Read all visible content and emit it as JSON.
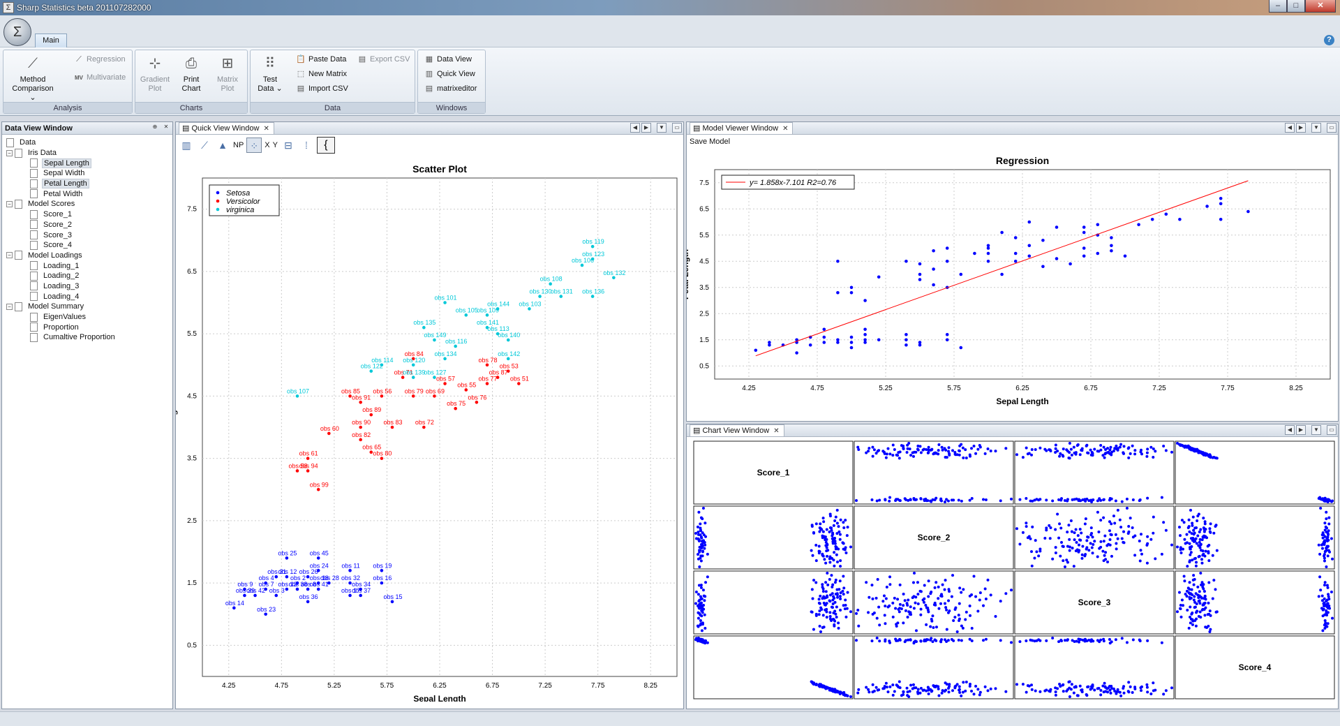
{
  "window": {
    "title": "Sharp Statistics beta 201107282000",
    "controls": [
      "–",
      "□",
      "✕"
    ]
  },
  "ribbon": {
    "tab": "Main",
    "groups": {
      "analysis": {
        "label": "Analysis",
        "method_comparison": [
          "Method",
          "Comparison ⌄"
        ],
        "regression": "Regression",
        "multivariate": "Multivariate",
        "mv_icon": "MV"
      },
      "charts": {
        "label": "Charts",
        "gradient_plot": [
          "Gradient",
          "Plot"
        ],
        "print_chart": [
          "Print",
          "Chart"
        ],
        "matrix_plot": [
          "Matrix",
          "Plot"
        ]
      },
      "data": {
        "label": "Data",
        "test_data": [
          "Test",
          "Data ⌄"
        ],
        "paste_data": "Paste Data",
        "new_matrix": "New Matrix",
        "import_csv": "Import CSV",
        "export_csv": "Export CSV"
      },
      "windows": {
        "label": "Windows",
        "data_view": "Data View",
        "quick_view": "Quick View",
        "matrixeditor": "matrixeditor"
      }
    }
  },
  "data_view": {
    "title": "Data View Window",
    "root": "Data",
    "groups": [
      {
        "label": "Iris Data",
        "items": [
          "Sepal Length",
          "Sepal Width",
          "Petal Length",
          "Petal Width"
        ]
      },
      {
        "label": "Model  Scores",
        "items": [
          "Score_1",
          "Score_2",
          "Score_3",
          "Score_4"
        ]
      },
      {
        "label": "Model  Loadings",
        "items": [
          "Loading_1",
          "Loading_2",
          "Loading_3",
          "Loading_4"
        ]
      },
      {
        "label": "Model  Summary",
        "items": [
          "EigenValues",
          "Proportion",
          "Cumaltive Proportion"
        ]
      }
    ]
  },
  "quick_view": {
    "title": "Quick View Window",
    "toolbar": {
      "np": "NP",
      "x": "X",
      "y": "Y",
      "brace": "{"
    }
  },
  "model_viewer": {
    "title": "Model Viewer Window",
    "save_model": "Save Model"
  },
  "chart_view": {
    "title": "Chart View Window"
  },
  "chart_data": [
    {
      "type": "scatter",
      "title": "Scatter Plot",
      "xlabel": "Sepal Length",
      "ylabel": "Petal Length",
      "xlim": [
        4.0,
        8.5
      ],
      "ylim": [
        0.0,
        8.0
      ],
      "xticks": [
        4.25,
        4.75,
        5.25,
        5.75,
        6.25,
        6.75,
        7.25,
        7.75,
        8.25
      ],
      "yticks": [
        0.5,
        1.5,
        2.5,
        3.5,
        4.5,
        5.5,
        6.5,
        7.5
      ],
      "grid": true,
      "legend": "top-left",
      "series": [
        {
          "name": "Setosa",
          "color": "#0000ff",
          "points": [
            [
              4.3,
              1.1,
              "obs 14"
            ],
            [
              4.4,
              1.4,
              "obs 9"
            ],
            [
              4.4,
              1.3,
              "obs 39"
            ],
            [
              4.5,
              1.3,
              "obs 42"
            ],
            [
              4.6,
              1.0,
              "obs 23"
            ],
            [
              4.6,
              1.5,
              "obs 4"
            ],
            [
              4.6,
              1.4,
              "obs 7"
            ],
            [
              4.7,
              1.6,
              "obs 31"
            ],
            [
              4.7,
              1.3,
              "obs 3"
            ],
            [
              4.8,
              1.9,
              "obs 25"
            ],
            [
              4.8,
              1.6,
              "obs 12"
            ],
            [
              4.8,
              1.4,
              "obs 13"
            ],
            [
              4.9,
              1.5,
              "obs 2"
            ],
            [
              4.9,
              1.4,
              "obs 38"
            ],
            [
              5.0,
              1.6,
              "obs 26"
            ],
            [
              5.0,
              1.4,
              "obs 8"
            ],
            [
              5.0,
              1.2,
              "obs 36"
            ],
            [
              5.1,
              1.9,
              "obs 45"
            ],
            [
              5.1,
              1.5,
              "obs 18"
            ],
            [
              5.1,
              1.4,
              "obs 41"
            ],
            [
              5.1,
              1.7,
              "obs 24"
            ],
            [
              5.2,
              1.5,
              "obs 28"
            ],
            [
              5.4,
              1.7,
              "obs 11"
            ],
            [
              5.4,
              1.5,
              "obs 32"
            ],
            [
              5.4,
              1.3,
              "obs 17"
            ],
            [
              5.5,
              1.3,
              "obs 37"
            ],
            [
              5.5,
              1.4,
              "obs 34"
            ],
            [
              5.7,
              1.7,
              "obs 19"
            ],
            [
              5.7,
              1.5,
              "obs 16"
            ],
            [
              5.8,
              1.2,
              "obs 15"
            ]
          ]
        },
        {
          "name": "Versicolor",
          "color": "#ff0000",
          "points": [
            [
              4.9,
              3.3,
              "obs 58"
            ],
            [
              5.0,
              3.5,
              "obs 61"
            ],
            [
              5.0,
              3.3,
              "obs 94"
            ],
            [
              5.1,
              3.0,
              "obs 99"
            ],
            [
              5.2,
              3.9,
              "obs 60"
            ],
            [
              5.4,
              4.5,
              "obs 85"
            ],
            [
              5.5,
              4.0,
              "obs 90"
            ],
            [
              5.5,
              3.8,
              "obs 82"
            ],
            [
              5.5,
              4.4,
              "obs 91"
            ],
            [
              5.6,
              3.6,
              "obs 65"
            ],
            [
              5.6,
              4.2,
              "obs 89"
            ],
            [
              5.7,
              3.5,
              "obs 80"
            ],
            [
              5.7,
              4.5,
              "obs 56"
            ],
            [
              5.8,
              4.0,
              "obs 83"
            ],
            [
              5.9,
              4.8,
              "obs 71"
            ],
            [
              6.0,
              4.5,
              "obs 79"
            ],
            [
              6.0,
              5.1,
              "obs 84"
            ],
            [
              6.1,
              4.0,
              "obs 72"
            ],
            [
              6.2,
              4.5,
              "obs 69"
            ],
            [
              6.3,
              4.7,
              "obs 57"
            ],
            [
              6.4,
              4.3,
              "obs 75"
            ],
            [
              6.5,
              4.6,
              "obs 55"
            ],
            [
              6.6,
              4.4,
              "obs 76"
            ],
            [
              6.7,
              4.7,
              "obs 77"
            ],
            [
              6.7,
              5.0,
              "obs 78"
            ],
            [
              6.8,
              4.8,
              "obs 87"
            ],
            [
              6.9,
              4.9,
              "obs 53"
            ],
            [
              7.0,
              4.7,
              "obs 51"
            ]
          ]
        },
        {
          "name": "virginica",
          "color": "#00c8d8",
          "points": [
            [
              4.9,
              4.5,
              "obs 107"
            ],
            [
              5.6,
              4.9,
              "obs 122"
            ],
            [
              5.7,
              5.0,
              "obs 114"
            ],
            [
              6.0,
              5.0,
              "obs 120"
            ],
            [
              6.0,
              4.8,
              "obs 139"
            ],
            [
              6.1,
              5.6,
              "obs 135"
            ],
            [
              6.2,
              4.8,
              "obs 127"
            ],
            [
              6.2,
              5.4,
              "obs 149"
            ],
            [
              6.3,
              6.0,
              "obs 101"
            ],
            [
              6.3,
              5.1,
              "obs 134"
            ],
            [
              6.4,
              5.3,
              "obs 116"
            ],
            [
              6.5,
              5.8,
              "obs 105"
            ],
            [
              6.7,
              5.8,
              "obs 109"
            ],
            [
              6.7,
              5.6,
              "obs 141"
            ],
            [
              6.8,
              5.9,
              "obs 144"
            ],
            [
              6.8,
              5.5,
              "obs 113"
            ],
            [
              6.9,
              5.1,
              "obs 142"
            ],
            [
              6.9,
              5.4,
              "obs 140"
            ],
            [
              7.1,
              5.9,
              "obs 103"
            ],
            [
              7.2,
              6.1,
              "obs 130"
            ],
            [
              7.3,
              6.3,
              "obs 108"
            ],
            [
              7.4,
              6.1,
              "obs 131"
            ],
            [
              7.6,
              6.6,
              "obs 106"
            ],
            [
              7.7,
              6.9,
              "obs 119"
            ],
            [
              7.7,
              6.7,
              "obs 123"
            ],
            [
              7.7,
              6.1,
              "obs 136"
            ],
            [
              7.9,
              6.4,
              "obs 132"
            ]
          ]
        }
      ]
    },
    {
      "type": "scatter",
      "title": "Regression",
      "xlabel": "Sepal Length",
      "ylabel": "Petal Length",
      "xlim": [
        4.0,
        8.5
      ],
      "ylim": [
        0.0,
        8.0
      ],
      "xticks": [
        4.25,
        4.75,
        5.25,
        5.75,
        6.25,
        6.75,
        7.25,
        7.75,
        8.25
      ],
      "yticks": [
        0.5,
        1.5,
        2.5,
        3.5,
        4.5,
        5.5,
        6.5,
        7.5
      ],
      "grid": true,
      "legend": "top-left",
      "fit_label": "y= 1.858x-7.101 R2=0.76",
      "fit": {
        "slope": 1.858,
        "intercept": -7.101,
        "x_range": [
          4.3,
          7.9
        ],
        "color": "#ff0000"
      },
      "point_color": "#0000ff",
      "points": [
        [
          4.3,
          1.1
        ],
        [
          4.4,
          1.4
        ],
        [
          4.4,
          1.3
        ],
        [
          4.5,
          1.3
        ],
        [
          4.6,
          1.0
        ],
        [
          4.6,
          1.5
        ],
        [
          4.6,
          1.4
        ],
        [
          4.7,
          1.6
        ],
        [
          4.7,
          1.3
        ],
        [
          4.8,
          1.9
        ],
        [
          4.8,
          1.6
        ],
        [
          4.8,
          1.4
        ],
        [
          4.9,
          1.5
        ],
        [
          4.9,
          1.4
        ],
        [
          5.0,
          1.6
        ],
        [
          5.0,
          1.4
        ],
        [
          5.0,
          1.2
        ],
        [
          5.1,
          1.9
        ],
        [
          5.1,
          1.5
        ],
        [
          5.1,
          1.4
        ],
        [
          5.1,
          1.7
        ],
        [
          5.2,
          1.5
        ],
        [
          5.4,
          1.7
        ],
        [
          5.4,
          1.5
        ],
        [
          5.4,
          1.3
        ],
        [
          5.5,
          1.3
        ],
        [
          5.5,
          1.4
        ],
        [
          5.7,
          1.7
        ],
        [
          5.7,
          1.5
        ],
        [
          5.8,
          1.2
        ],
        [
          4.9,
          3.3
        ],
        [
          5.0,
          3.5
        ],
        [
          5.0,
          3.3
        ],
        [
          5.1,
          3.0
        ],
        [
          5.2,
          3.9
        ],
        [
          5.4,
          4.5
        ],
        [
          5.5,
          4.0
        ],
        [
          5.5,
          3.8
        ],
        [
          5.5,
          4.4
        ],
        [
          5.6,
          3.6
        ],
        [
          5.6,
          4.2
        ],
        [
          5.7,
          3.5
        ],
        [
          5.7,
          4.5
        ],
        [
          5.8,
          4.0
        ],
        [
          5.9,
          4.8
        ],
        [
          6.0,
          4.5
        ],
        [
          6.0,
          5.1
        ],
        [
          6.1,
          4.0
        ],
        [
          6.2,
          4.5
        ],
        [
          6.3,
          4.7
        ],
        [
          6.4,
          4.3
        ],
        [
          6.5,
          4.6
        ],
        [
          6.6,
          4.4
        ],
        [
          6.7,
          4.7
        ],
        [
          6.7,
          5.0
        ],
        [
          6.8,
          4.8
        ],
        [
          6.9,
          4.9
        ],
        [
          7.0,
          4.7
        ],
        [
          4.9,
          4.5
        ],
        [
          5.6,
          4.9
        ],
        [
          5.7,
          5.0
        ],
        [
          6.0,
          5.0
        ],
        [
          6.0,
          4.8
        ],
        [
          6.1,
          5.6
        ],
        [
          6.2,
          4.8
        ],
        [
          6.2,
          5.4
        ],
        [
          6.3,
          6.0
        ],
        [
          6.3,
          5.1
        ],
        [
          6.4,
          5.3
        ],
        [
          6.5,
          5.8
        ],
        [
          6.7,
          5.8
        ],
        [
          6.7,
          5.6
        ],
        [
          6.8,
          5.9
        ],
        [
          6.8,
          5.5
        ],
        [
          6.9,
          5.1
        ],
        [
          6.9,
          5.4
        ],
        [
          7.1,
          5.9
        ],
        [
          7.2,
          6.1
        ],
        [
          7.3,
          6.3
        ],
        [
          7.4,
          6.1
        ],
        [
          7.6,
          6.6
        ],
        [
          7.7,
          6.9
        ],
        [
          7.7,
          6.7
        ],
        [
          7.7,
          6.1
        ],
        [
          7.9,
          6.4
        ]
      ]
    },
    {
      "type": "scatter-matrix",
      "variables": [
        "Score_1",
        "Score_2",
        "Score_3",
        "Score_4"
      ],
      "point_color": "#0000ff"
    }
  ]
}
